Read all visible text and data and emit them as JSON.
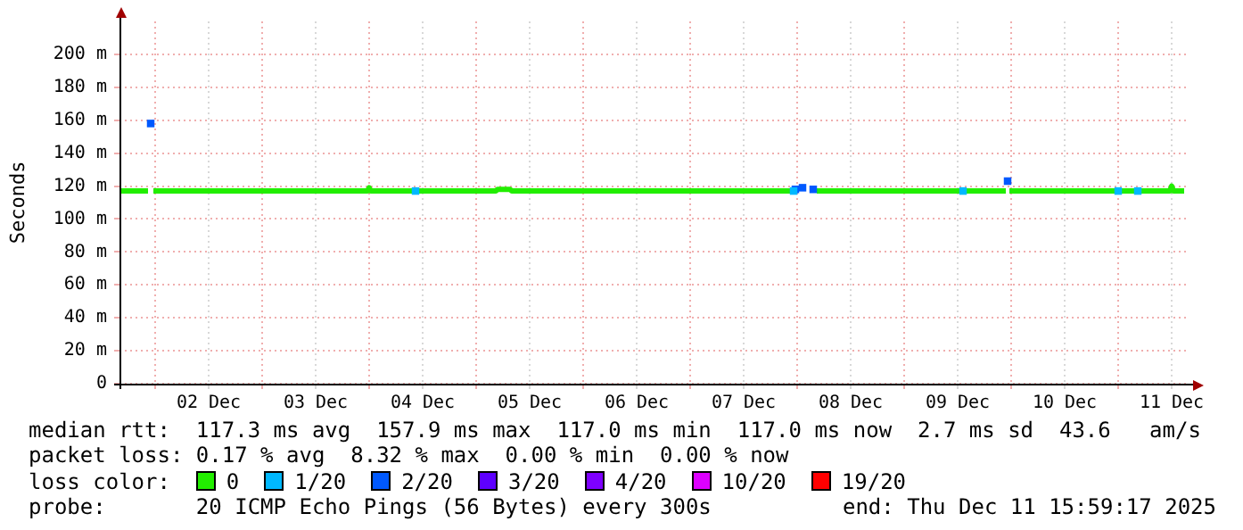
{
  "chart_data": {
    "type": "line",
    "ylabel": "Seconds",
    "xlim": [
      "2025-12-01T16:00",
      "2025-12-11T16:00"
    ],
    "xticks": [
      {
        "value": "2025-12-02T00:00",
        "label": null
      },
      {
        "value": "2025-12-02T12:00",
        "label": "02 Dec"
      },
      {
        "value": "2025-12-03T00:00",
        "label": null
      },
      {
        "value": "2025-12-03T12:00",
        "label": "03 Dec"
      },
      {
        "value": "2025-12-04T00:00",
        "label": null
      },
      {
        "value": "2025-12-04T12:00",
        "label": "04 Dec"
      },
      {
        "value": "2025-12-05T00:00",
        "label": null
      },
      {
        "value": "2025-12-05T12:00",
        "label": "05 Dec"
      },
      {
        "value": "2025-12-06T00:00",
        "label": null
      },
      {
        "value": "2025-12-06T12:00",
        "label": "06 Dec"
      },
      {
        "value": "2025-12-07T00:00",
        "label": null
      },
      {
        "value": "2025-12-07T12:00",
        "label": "07 Dec"
      },
      {
        "value": "2025-12-08T00:00",
        "label": null
      },
      {
        "value": "2025-12-08T12:00",
        "label": "08 Dec"
      },
      {
        "value": "2025-12-09T00:00",
        "label": null
      },
      {
        "value": "2025-12-09T12:00",
        "label": "09 Dec"
      },
      {
        "value": "2025-12-10T00:00",
        "label": null
      },
      {
        "value": "2025-12-10T12:00",
        "label": "10 Dec"
      },
      {
        "value": "2025-12-11T00:00",
        "label": null
      },
      {
        "value": "2025-12-11T12:00",
        "label": "11 Dec"
      }
    ],
    "ylim": [
      0,
      220
    ],
    "yticks": [
      0,
      {
        "value": 20,
        "label": "20 m"
      },
      {
        "value": 40,
        "label": "40 m"
      },
      {
        "value": 60,
        "label": "60 m"
      },
      {
        "value": 80,
        "label": "80 m"
      },
      {
        "value": 100,
        "label": "100 m"
      },
      {
        "value": 120,
        "label": "120 m"
      },
      {
        "value": 140,
        "label": "140 m"
      },
      {
        "value": 160,
        "label": "160 m"
      },
      {
        "value": 180,
        "label": "180 m"
      },
      {
        "value": 200,
        "label": "200 m"
      }
    ],
    "grid": true,
    "legend": "bottom",
    "legend_title": "loss color:",
    "series": [
      {
        "name": "0",
        "color": "#22ee00",
        "marker": "none",
        "x": [
          "2025-12-01T16:00",
          "2025-12-01T22:24",
          "2025-12-01T23:00",
          "2025-12-01T23:36",
          "2025-12-03T23:36",
          "2025-12-04T00:00",
          "2025-12-04T00:24",
          "2025-12-05T04:24",
          "2025-12-05T04:48",
          "2025-12-05T07:36",
          "2025-12-05T08:00",
          "2025-12-07T22:48",
          "2025-12-07T23:36",
          "2025-12-08T04:24",
          "2025-12-09T22:48",
          "2025-12-09T23:12",
          "2025-12-09T23:36",
          "2025-12-11T11:36",
          "2025-12-11T12:00",
          "2025-12-11T12:24",
          "2025-12-11T14:48"
        ],
        "values": [
          117,
          117,
          null,
          117,
          117,
          119,
          117,
          117,
          118,
          118,
          117,
          117,
          null,
          117,
          117,
          null,
          117,
          117,
          120,
          117,
          117
        ]
      },
      {
        "name": "1/20",
        "color": "#00b8ff",
        "type": "scatter",
        "marker": "square",
        "x": [
          "2025-12-04T10:24",
          "2025-12-07T23:12",
          "2025-12-09T13:12",
          "2025-12-11T00:00",
          "2025-12-11T04:24"
        ],
        "values": [
          117,
          117,
          117,
          117,
          117
        ]
      },
      {
        "name": "2/20",
        "color": "#0059ff",
        "type": "scatter",
        "marker": "square",
        "x": [
          "2025-12-01T23:00",
          "2025-12-07T23:36",
          "2025-12-08T01:12",
          "2025-12-08T03:36",
          "2025-12-09T23:12"
        ],
        "values": [
          158,
          118,
          119,
          118,
          123
        ]
      },
      {
        "name": "3/20",
        "color": "#5e00ff",
        "type": "scatter",
        "marker": "square"
      },
      {
        "name": "4/20",
        "color": "#7e00ff",
        "type": "scatter",
        "marker": "square"
      },
      {
        "name": "10/20",
        "color": "#dd00ff",
        "type": "scatter",
        "marker": "square"
      },
      {
        "name": "19/20",
        "color": "#ff0000",
        "type": "scatter",
        "marker": "square"
      }
    ],
    "annotations": [
      "median rtt:  117.3 ms avg  157.9 ms max  117.0 ms min  117.0 ms now  2.7 ms sd  43.6   am/s",
      "packet loss: 0.17 % avg  8.32 % max  0.00 % min  0.00 % now",
      "probe:       20 ICMP Echo Pings (56 Bytes) every 300s",
      "end: Thu Dec 11 15:59:17 2025"
    ]
  }
}
